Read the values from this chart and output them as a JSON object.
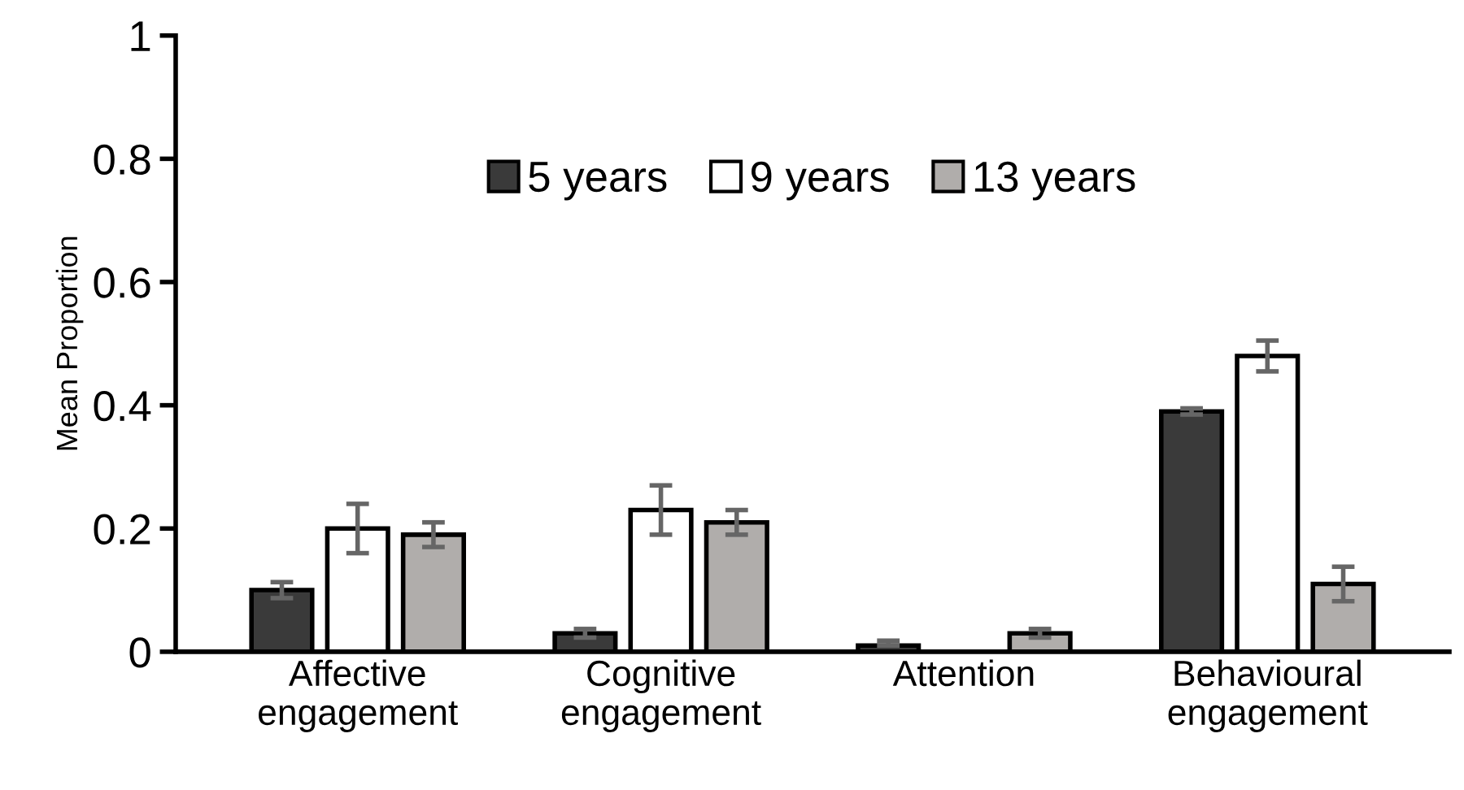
{
  "chart_data": {
    "type": "bar",
    "ylabel": "Mean Proportion",
    "categories": [
      "Affective\nengagement",
      "Cognitive\nengagement",
      "Attention",
      "Behavioural\nengagement"
    ],
    "series": [
      {
        "name": "5 years",
        "color": "#3a3a3a",
        "values": [
          0.1,
          0.03,
          0.01,
          0.39
        ],
        "errors": [
          0.013,
          0.007,
          [
            0.01,
            0.018
          ],
          0.005
        ]
      },
      {
        "name": "9 years",
        "color": "#ffffff",
        "values": [
          0.2,
          0.23,
          null,
          0.48
        ],
        "errors": [
          0.04,
          0.04,
          null,
          0.025
        ]
      },
      {
        "name": "13 years",
        "color": "#b0adab",
        "values": [
          0.19,
          0.21,
          0.03,
          0.11
        ],
        "errors": [
          0.02,
          0.02,
          0.007,
          0.028
        ]
      }
    ],
    "ylim": [
      0,
      1
    ],
    "yticks": [
      0,
      0.2,
      0.4,
      0.6,
      0.8,
      1
    ],
    "grid": false,
    "legend": "top"
  }
}
